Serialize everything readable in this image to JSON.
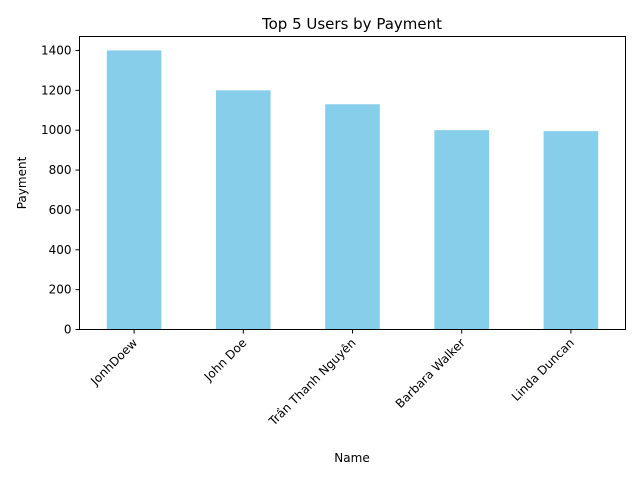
{
  "chart_data": {
    "type": "bar",
    "title": "Top 5 Users by Payment",
    "xlabel": "Name",
    "ylabel": "Payment",
    "categories": [
      "JonhDoew",
      "John Doe",
      "Trần Thanh Nguyên",
      "Barbara Walker",
      "Linda Duncan"
    ],
    "values": [
      1400,
      1200,
      1130,
      1000,
      995
    ],
    "ylim": [
      0,
      1470
    ],
    "yticks": [
      0,
      200,
      400,
      600,
      800,
      1000,
      1200,
      1400
    ],
    "grid": false,
    "bar_color": "#87ceeb"
  }
}
